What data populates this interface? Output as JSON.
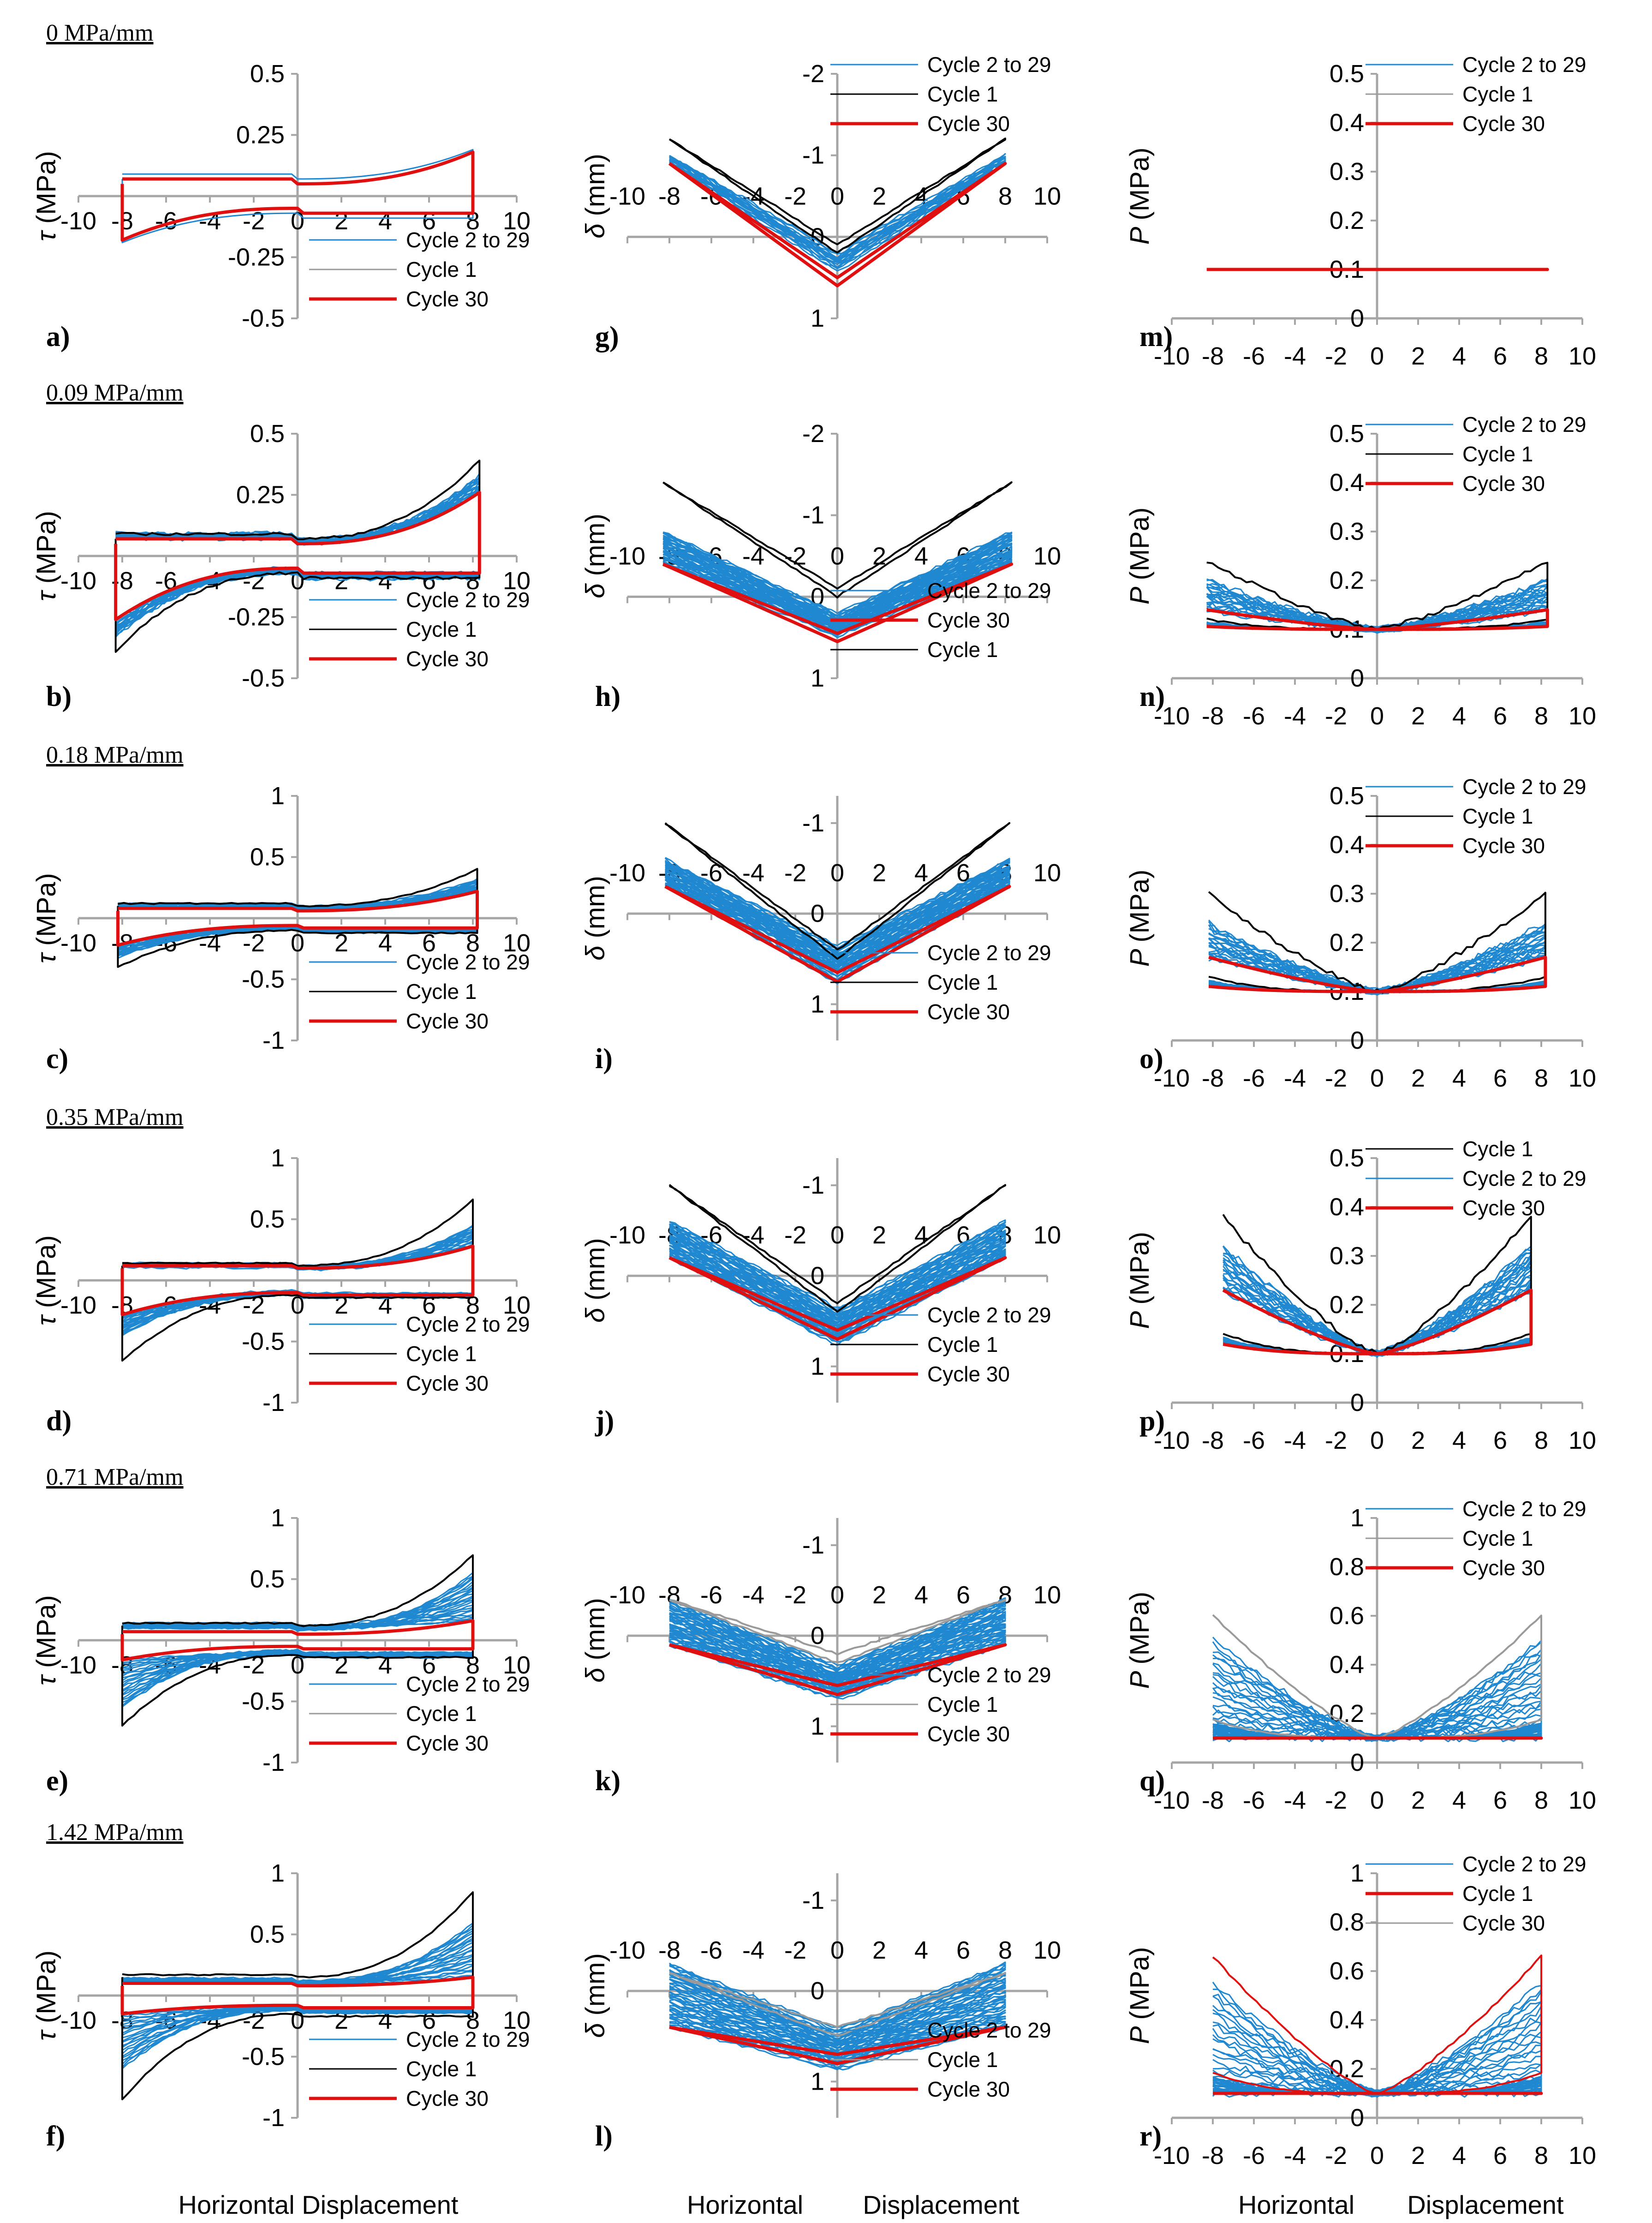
{
  "figure": {
    "footer": {
      "left": "Horizontal Displacement",
      "mid_a": "Horizontal",
      "mid_b": "Displacement",
      "right_a": "Horizontal",
      "right_b": "Displacement"
    },
    "colors": {
      "cycle_fill": "#1f88d0",
      "cycle_1": "#000000",
      "cycle_30": "#e01010",
      "axis": "#a6a6a6"
    },
    "glyphs": {
      "tau": "τ",
      "delta": "δ",
      "minus": "-"
    }
  },
  "chart_data": [
    {
      "panel": "a",
      "kind": "tau",
      "type": "line",
      "row_title": "0 MPa/mm",
      "ylabel": "(MPa)",
      "xlim": [
        -10,
        10
      ],
      "ylim": [
        -0.5,
        0.5
      ],
      "yticks": [
        {
          "v": 0.5,
          "t": "0.5"
        },
        {
          "v": 0.25,
          "t": "0.25"
        },
        {
          "v": -0.25,
          "t": "-0.25"
        },
        {
          "v": -0.5,
          "t": "-0.5"
        }
      ],
      "legend": [
        {
          "text": "Cycle 2 to 29",
          "series": "blue"
        },
        {
          "text": "Cycle 1",
          "series": "grey"
        },
        {
          "text": "Cycle 30",
          "series": "red"
        }
      ],
      "fill_cycles": 0,
      "amp": 8,
      "loop": {
        "low": 0.05,
        "high": 0.18
      },
      "cycle1": {
        "low": 0.07,
        "high": 0.19
      },
      "cycle30": {
        "low": 0.05,
        "high": 0.18
      }
    },
    {
      "panel": "b",
      "kind": "tau",
      "type": "line",
      "row_title": "0.09 MPa/mm",
      "ylabel": "(MPa)",
      "xlim": [
        -10,
        10
      ],
      "ylim": [
        -0.5,
        0.5
      ],
      "yticks": [
        {
          "v": 0.5,
          "t": "0.5"
        },
        {
          "v": 0.25,
          "t": "0.25"
        },
        {
          "v": -0.25,
          "t": "-0.25"
        },
        {
          "v": -0.5,
          "t": "-0.5"
        }
      ],
      "legend": [
        {
          "text": "Cycle 2 to 29",
          "series": "blue"
        },
        {
          "text": "Cycle 1",
          "series": "black"
        },
        {
          "text": "Cycle 30",
          "series": "red"
        }
      ],
      "fill_cycles": 20,
      "amp": 8.3,
      "loop": {
        "low": 0.06,
        "high": 0.33
      },
      "cycle1": {
        "low": 0.07,
        "high": 0.39
      },
      "cycle30": {
        "low": 0.05,
        "high": 0.26
      }
    },
    {
      "panel": "c",
      "kind": "tau",
      "type": "line",
      "row_title": "0.18 MPa/mm",
      "ylabel": "(MPa)",
      "xlim": [
        -10,
        10
      ],
      "ylim": [
        -1,
        1
      ],
      "yticks": [
        {
          "v": 1,
          "t": "1"
        },
        {
          "v": 0.5,
          "t": "0.5"
        },
        {
          "v": -0.5,
          "t": "-0.5"
        },
        {
          "v": -1,
          "t": "-1"
        }
      ],
      "legend": [
        {
          "text": "Cycle 2 to 29",
          "series": "blue"
        },
        {
          "text": "Cycle 1",
          "series": "black"
        },
        {
          "text": "Cycle 30",
          "series": "red"
        }
      ],
      "fill_cycles": 20,
      "amp": 8.2,
      "loop": {
        "low": 0.08,
        "high": 0.32
      },
      "cycle1": {
        "low": 0.1,
        "high": 0.4
      },
      "cycle30": {
        "low": 0.06,
        "high": 0.22
      }
    },
    {
      "panel": "d",
      "kind": "tau",
      "type": "line",
      "row_title": "0.35 MPa/mm",
      "ylabel": "(MPa)",
      "xlim": [
        -10,
        10
      ],
      "ylim": [
        -1,
        1
      ],
      "yticks": [
        {
          "v": 1,
          "t": "1"
        },
        {
          "v": 0.5,
          "t": "0.5"
        },
        {
          "v": -0.5,
          "t": "-0.5"
        },
        {
          "v": -1,
          "t": "-1"
        }
      ],
      "legend": [
        {
          "text": "Cycle 2 to 29",
          "series": "blue"
        },
        {
          "text": "Cycle 1",
          "series": "black"
        },
        {
          "text": "Cycle 30",
          "series": "red"
        }
      ],
      "fill_cycles": 20,
      "amp": 8,
      "loop": {
        "low": 0.1,
        "high": 0.45
      },
      "cycle1": {
        "low": 0.12,
        "high": 0.66
      },
      "cycle30": {
        "low": 0.1,
        "high": 0.28
      }
    },
    {
      "panel": "e",
      "kind": "tau",
      "type": "line",
      "row_title": "0.71 MPa/mm",
      "ylabel": "(MPa)",
      "xlim": [
        -10,
        10
      ],
      "ylim": [
        -1,
        1
      ],
      "yticks": [
        {
          "v": 1,
          "t": "1"
        },
        {
          "v": 0.5,
          "t": "0.5"
        },
        {
          "v": -0.5,
          "t": "-0.5"
        },
        {
          "v": -1,
          "t": "-1"
        }
      ],
      "legend": [
        {
          "text": "Cycle 2 to 29",
          "series": "blue"
        },
        {
          "text": "Cycle 1",
          "series": "grey"
        },
        {
          "text": "Cycle 30",
          "series": "red"
        }
      ],
      "fill_cycles": 22,
      "amp": 8,
      "loop": {
        "low": 0.1,
        "high": 0.55
      },
      "cycle1": {
        "low": 0.12,
        "high": 0.7
      },
      "cycle30": {
        "low": 0.05,
        "high": 0.16
      }
    },
    {
      "panel": "f",
      "kind": "tau",
      "type": "line",
      "row_title": "1.42 MPa/mm",
      "ylabel": "(MPa)",
      "xlim": [
        -10,
        10
      ],
      "ylim": [
        -1,
        1
      ],
      "yticks": [
        {
          "v": 1,
          "t": "1"
        },
        {
          "v": 0.5,
          "t": "0.5"
        },
        {
          "v": -0.5,
          "t": "-0.5"
        },
        {
          "v": -1,
          "t": "-1"
        }
      ],
      "legend": [
        {
          "text": "Cycle 2 to 29",
          "series": "blue"
        },
        {
          "text": "Cycle 1",
          "series": "black"
        },
        {
          "text": "Cycle 30",
          "series": "red"
        }
      ],
      "fill_cycles": 22,
      "amp": 8,
      "loop": {
        "low": 0.1,
        "high": 0.6
      },
      "cycle1": {
        "low": 0.15,
        "high": 0.85
      },
      "cycle30": {
        "low": 0.08,
        "high": 0.15
      }
    },
    {
      "panel": "g",
      "kind": "delta",
      "type": "line",
      "ylabel": "(mm)",
      "xlim": [
        -10,
        10
      ],
      "ylim": [
        -2,
        1
      ],
      "yticks": [
        {
          "v": -2,
          "t": "-2"
        },
        {
          "v": -1,
          "t": "-1"
        },
        {
          "v": 0,
          "t": "0"
        },
        {
          "v": 1,
          "t": "1"
        }
      ],
      "legend": [
        {
          "text": "Cycle 2 to 29",
          "series": "blue"
        },
        {
          "text": "Cycle 1",
          "series": "black"
        },
        {
          "text": "Cycle 30",
          "series": "red"
        }
      ],
      "fill_cycles": 8,
      "amp": 8,
      "v_depth": 0.3,
      "v_top": -1.0,
      "cycle30": {
        "depth": 0.5,
        "top": -0.9
      },
      "cycle1": {
        "depth": 0.1,
        "top": -1.2
      }
    },
    {
      "panel": "h",
      "kind": "delta",
      "type": "line",
      "ylabel": "(mm)",
      "xlim": [
        -10,
        10
      ],
      "ylim": [
        -2,
        1
      ],
      "yticks": [
        {
          "v": -2,
          "t": "-2"
        },
        {
          "v": -1,
          "t": "-1"
        },
        {
          "v": 0,
          "t": "0"
        },
        {
          "v": 1,
          "t": "1"
        }
      ],
      "legend": [
        {
          "text": "Cycle 2 to 29",
          "series": "blue"
        },
        {
          "text": "Cycle 30",
          "series": "red"
        },
        {
          "text": "Cycle 1",
          "series": "black"
        }
      ],
      "fill_cycles": 22,
      "amp": 8.3,
      "v_depth": 0.35,
      "v_top": -0.8,
      "cycle30": {
        "depth": 0.45,
        "top": -0.4
      },
      "cycle1": {
        "depth": -0.1,
        "top": -1.4
      }
    },
    {
      "panel": "i",
      "kind": "delta",
      "type": "line",
      "ylabel": "(mm)",
      "xlim": [
        -10,
        10
      ],
      "ylim": [
        -1.3,
        1.4
      ],
      "yticks": [
        {
          "v": -1,
          "t": "-1"
        },
        {
          "v": 0,
          "t": "0"
        },
        {
          "v": 1,
          "t": "1"
        }
      ],
      "legend": [
        {
          "text": "Cycle 2 to 29",
          "series": "blue"
        },
        {
          "text": "Cycle 1",
          "series": "black"
        },
        {
          "text": "Cycle 30",
          "series": "red"
        }
      ],
      "fill_cycles": 22,
      "amp": 8.2,
      "v_depth": 0.6,
      "v_top": -0.6,
      "cycle30": {
        "depth": 0.65,
        "top": -0.3
      },
      "cycle1": {
        "depth": 0.4,
        "top": -1.0
      }
    },
    {
      "panel": "j",
      "kind": "delta",
      "type": "line",
      "ylabel": "(mm)",
      "xlim": [
        -10,
        10
      ],
      "ylim": [
        -1.3,
        1.4
      ],
      "yticks": [
        {
          "v": -1,
          "t": "-1"
        },
        {
          "v": 0,
          "t": "0"
        },
        {
          "v": 1,
          "t": "1"
        }
      ],
      "legend": [
        {
          "text": "Cycle 2 to 29",
          "series": "blue"
        },
        {
          "text": "Cycle 1",
          "series": "black"
        },
        {
          "text": "Cycle 30",
          "series": "red"
        }
      ],
      "fill_cycles": 22,
      "amp": 8,
      "v_depth": 0.6,
      "v_top": -0.6,
      "cycle30": {
        "depth": 0.6,
        "top": -0.2
      },
      "cycle1": {
        "depth": 0.3,
        "top": -1.0
      }
    },
    {
      "panel": "k",
      "kind": "delta",
      "type": "line",
      "ylabel": "(mm)",
      "xlim": [
        -10,
        10
      ],
      "ylim": [
        -1.3,
        1.4
      ],
      "yticks": [
        {
          "v": -1,
          "t": "-1"
        },
        {
          "v": 0,
          "t": "0"
        },
        {
          "v": 1,
          "t": "1"
        }
      ],
      "legend": [
        {
          "text": "Cycle 2 to 29",
          "series": "blue"
        },
        {
          "text": "Cycle 1",
          "series": "grey"
        },
        {
          "text": "Cycle 30",
          "series": "red"
        }
      ],
      "fill_cycles": 24,
      "amp": 8,
      "v_depth": 0.55,
      "v_top": -0.4,
      "cycle30": {
        "depth": 0.55,
        "top": 0.1
      },
      "cycle1": {
        "depth": 0.2,
        "top": -0.4
      }
    },
    {
      "panel": "l",
      "kind": "delta",
      "type": "line",
      "ylabel": "(mm)",
      "xlim": [
        -10,
        10
      ],
      "ylim": [
        -1.3,
        1.4
      ],
      "yticks": [
        {
          "v": -1,
          "t": "-1"
        },
        {
          "v": 0,
          "t": "0"
        },
        {
          "v": 1,
          "t": "1"
        }
      ],
      "legend": [
        {
          "text": "Cycle 2 to 29",
          "series": "blue"
        },
        {
          "text": "Cycle 1",
          "series": "grey"
        },
        {
          "text": "Cycle 30",
          "series": "red"
        }
      ],
      "fill_cycles": 24,
      "amp": 8,
      "v_depth": 0.7,
      "v_top": -0.3,
      "cycle30": {
        "depth": 0.7,
        "top": 0.4
      },
      "cycle1": {
        "depth": 0.4,
        "top": -0.2
      }
    },
    {
      "panel": "m",
      "kind": "P",
      "type": "line",
      "ylabel": "(MPa)",
      "xlim": [
        -10,
        10
      ],
      "ylim": [
        0,
        0.5
      ],
      "yticks": [
        {
          "v": 0,
          "t": "0"
        },
        {
          "v": 0.1,
          "t": "0.1"
        },
        {
          "v": 0.2,
          "t": "0.2"
        },
        {
          "v": 0.3,
          "t": "0.3"
        },
        {
          "v": 0.4,
          "t": "0.4"
        },
        {
          "v": 0.5,
          "t": "0.5"
        }
      ],
      "legend": [
        {
          "text": "Cycle 2 to 29",
          "series": "blue"
        },
        {
          "text": "Cycle 1",
          "series": "grey"
        },
        {
          "text": "Cycle 30",
          "series": "red"
        }
      ],
      "fill_cycles": 0,
      "amp": 8.3,
      "base": 0.1,
      "peak": 0.1,
      "cycle1_peak": 0.1,
      "cycle30_peak": 0.1
    },
    {
      "panel": "n",
      "kind": "P",
      "type": "line",
      "ylabel": "(MPa)",
      "xlim": [
        -10,
        10
      ],
      "ylim": [
        0,
        0.5
      ],
      "yticks": [
        {
          "v": 0,
          "t": "0"
        },
        {
          "v": 0.1,
          "t": "0.1"
        },
        {
          "v": 0.2,
          "t": "0.2"
        },
        {
          "v": 0.3,
          "t": "0.3"
        },
        {
          "v": 0.4,
          "t": "0.4"
        },
        {
          "v": 0.5,
          "t": "0.5"
        }
      ],
      "legend": [
        {
          "text": "Cycle 2 to 29",
          "series": "blue"
        },
        {
          "text": "Cycle 1",
          "series": "black"
        },
        {
          "text": "Cycle 30",
          "series": "red"
        }
      ],
      "fill_cycles": 22,
      "amp": 8.3,
      "base": 0.1,
      "peak": 0.2,
      "cycle1_peak": 0.24,
      "cycle30_peak": 0.14
    },
    {
      "panel": "o",
      "kind": "P",
      "type": "line",
      "ylabel": "(MPa)",
      "xlim": [
        -10,
        10
      ],
      "ylim": [
        0,
        0.5
      ],
      "yticks": [
        {
          "v": 0,
          "t": "0"
        },
        {
          "v": 0.1,
          "t": "0.1"
        },
        {
          "v": 0.2,
          "t": "0.2"
        },
        {
          "v": 0.3,
          "t": "0.3"
        },
        {
          "v": 0.4,
          "t": "0.4"
        },
        {
          "v": 0.5,
          "t": "0.5"
        }
      ],
      "legend": [
        {
          "text": "Cycle 2 to 29",
          "series": "blue"
        },
        {
          "text": "Cycle 1",
          "series": "black"
        },
        {
          "text": "Cycle 30",
          "series": "red"
        }
      ],
      "fill_cycles": 22,
      "amp": 8.2,
      "base": 0.1,
      "peak": 0.24,
      "cycle1_peak": 0.3,
      "cycle30_peak": 0.17
    },
    {
      "panel": "p",
      "kind": "P",
      "type": "line",
      "ylabel": "(MPa)",
      "xlim": [
        -10,
        10
      ],
      "ylim": [
        0,
        0.5
      ],
      "yticks": [
        {
          "v": 0,
          "t": "0"
        },
        {
          "v": 0.1,
          "t": "0.1"
        },
        {
          "v": 0.2,
          "t": "0.2"
        },
        {
          "v": 0.3,
          "t": "0.3"
        },
        {
          "v": 0.4,
          "t": "0.4"
        },
        {
          "v": 0.5,
          "t": "0.5"
        }
      ],
      "legend": [
        {
          "text": "Cycle 1",
          "series": "black"
        },
        {
          "text": "Cycle 2 to 29",
          "series": "blue"
        },
        {
          "text": "Cycle 30",
          "series": "red"
        }
      ],
      "fill_cycles": 22,
      "amp": 7.5,
      "base": 0.1,
      "peak": 0.32,
      "cycle1_peak": 0.38,
      "cycle30_peak": 0.23
    },
    {
      "panel": "q",
      "kind": "P",
      "type": "line",
      "ylabel": "(MPa)",
      "xlim": [
        -10,
        10
      ],
      "ylim": [
        0,
        1
      ],
      "yticks": [
        {
          "v": 0,
          "t": "0"
        },
        {
          "v": 0.2,
          "t": "0.2"
        },
        {
          "v": 0.4,
          "t": "0.4"
        },
        {
          "v": 0.6,
          "t": "0.6"
        },
        {
          "v": 0.8,
          "t": "0.8"
        },
        {
          "v": 1,
          "t": "1"
        }
      ],
      "legend": [
        {
          "text": "Cycle 2 to 29",
          "series": "blue"
        },
        {
          "text": "Cycle 1",
          "series": "grey"
        },
        {
          "text": "Cycle 30",
          "series": "red"
        }
      ],
      "fill_cycles": 24,
      "amp": 8,
      "base": 0.1,
      "peak": 0.5,
      "cycle1_peak": 0.6,
      "cycle30_peak": 0.1
    },
    {
      "panel": "r",
      "kind": "P",
      "type": "line",
      "ylabel": "(MPa)",
      "xlim": [
        -10,
        10
      ],
      "ylim": [
        0,
        1
      ],
      "yticks": [
        {
          "v": 0,
          "t": "0"
        },
        {
          "v": 0.2,
          "t": "0.2"
        },
        {
          "v": 0.4,
          "t": "0.4"
        },
        {
          "v": 0.6,
          "t": "0.6"
        },
        {
          "v": 0.8,
          "t": "0.8"
        },
        {
          "v": 1,
          "t": "1"
        }
      ],
      "legend": [
        {
          "text": "Cycle 2 to 29",
          "series": "blue"
        },
        {
          "text": "Cycle 1",
          "series": "red"
        },
        {
          "text": "Cycle 30",
          "series": "grey"
        }
      ],
      "fill_cycles": 22,
      "amp": 8,
      "base": 0.1,
      "peak": 0.55,
      "cycle1_peak": 0.66,
      "cycle30_peak": 0.1
    }
  ]
}
